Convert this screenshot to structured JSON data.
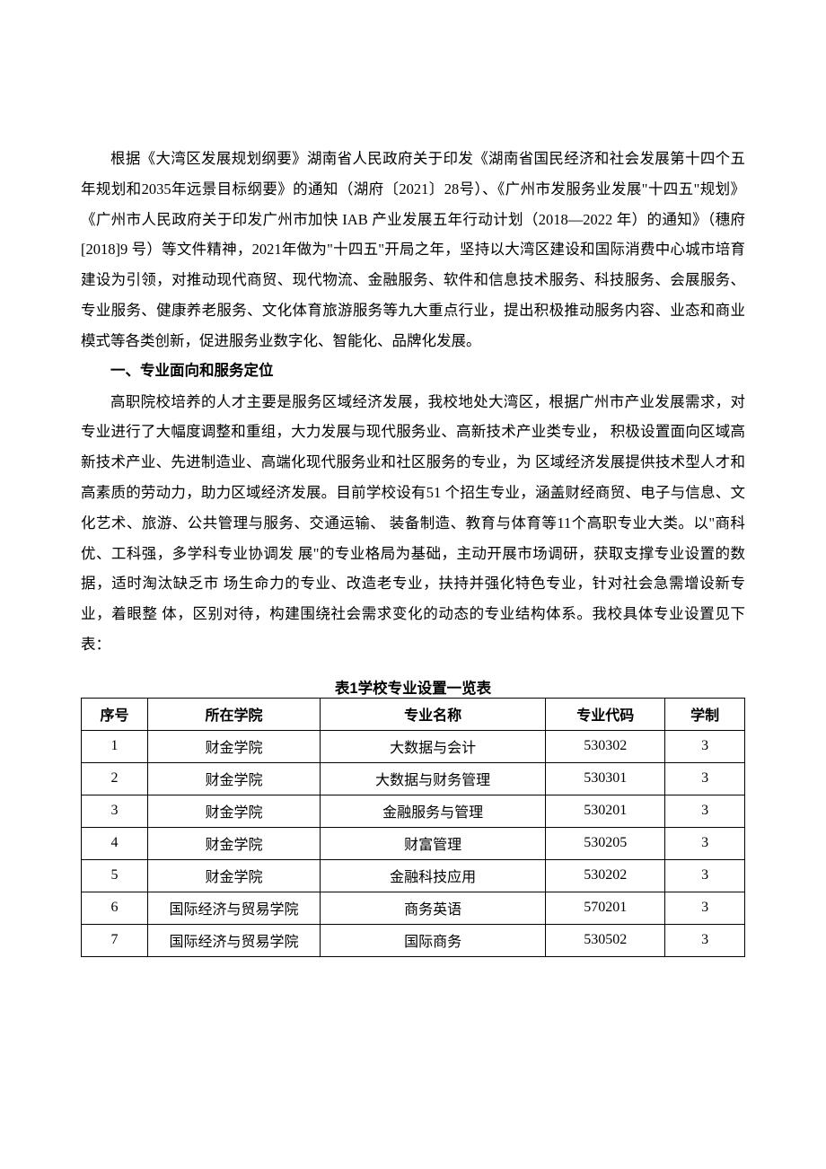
{
  "paragraphs": {
    "p1": "根据《大湾区发展规划纲要》湖南省人民政府关于印发《湖南省国民经济和社会发展第十四个五年规划和2035年远景目标纲要》的通知（湖府〔2021〕28号）、《广州市发服务业发展\"十四五\"规划》《广州市人民政府关于印发广州市加快 IAB 产业发展五年行动计划（2018—2022 年）的通知》（穗府[2018]9 号）等文件精神，2021年做为\"十四五\"开局之年，坚持以大湾区建设和国际消费中心城市培育建设为引领，对推动现代商贸、现代物流、金融服务、软件和信息技术服务、科技服务、会展服务、专业服务、健康养老服务、文化体育旅游服务等九大重点行业，提出积极推动服务内容、业态和商业模式等各类创新，促进服务业数字化、智能化、品牌化发展。",
    "h1": "一、专业面向和服务定位",
    "p2": "高职院校培养的人才主要是服务区域经济发展，我校地处大湾区，根据广州市产业发展需求，对专业进行了大幅度调整和重组，大力发展与现代服务业、高新技术产业类专业， 积极设置面向区域高新技术产业、先进制造业、高端化现代服务业和社区服务的专业，为 区域经济发展提供技术型人才和高素质的劳动力，助力区域经济发展。目前学校设有51 个招生专业，涵盖财经商贸、电子与信息、文化艺术、旅游、公共管理与服务、交通运输、 装备制造、教育与体育等11个高职专业大类。以\"商科优、工科强，多学科专业协调发 展\"的专业格局为基础，主动开展市场调研，获取支撑专业设置的数据，适时淘汰缺乏市 场生命力的专业、改造老专业，扶持并强化特色专业，针对社会急需增设新专业，着眼整 体，区别对待，构建围绕社会需求变化的动态的专业结构体系。我校具体专业设置见下表："
  },
  "table": {
    "caption": "表1学校专业设置一览表",
    "headers": {
      "seq": "序号",
      "college": "所在学院",
      "name": "专业名称",
      "code": "专业代码",
      "duration": "学制"
    },
    "rows": [
      {
        "seq": "1",
        "college": "财金学院",
        "name": "大数据与会计",
        "code": "530302",
        "duration": "3"
      },
      {
        "seq": "2",
        "college": "财金学院",
        "name": "大数据与财务管理",
        "code": "530301",
        "duration": "3"
      },
      {
        "seq": "3",
        "college": "财金学院",
        "name": "金融服务与管理",
        "code": "530201",
        "duration": "3"
      },
      {
        "seq": "4",
        "college": "财金学院",
        "name": "财富管理",
        "code": "530205",
        "duration": "3"
      },
      {
        "seq": "5",
        "college": "财金学院",
        "name": "金融科技应用",
        "code": "530202",
        "duration": "3"
      },
      {
        "seq": "6",
        "college": "国际经济与贸易学院",
        "name": "商务英语",
        "code": "570201",
        "duration": "3"
      },
      {
        "seq": "7",
        "college": "国际经济与贸易学院",
        "name": "国际商务",
        "code": "530502",
        "duration": "3"
      }
    ]
  }
}
